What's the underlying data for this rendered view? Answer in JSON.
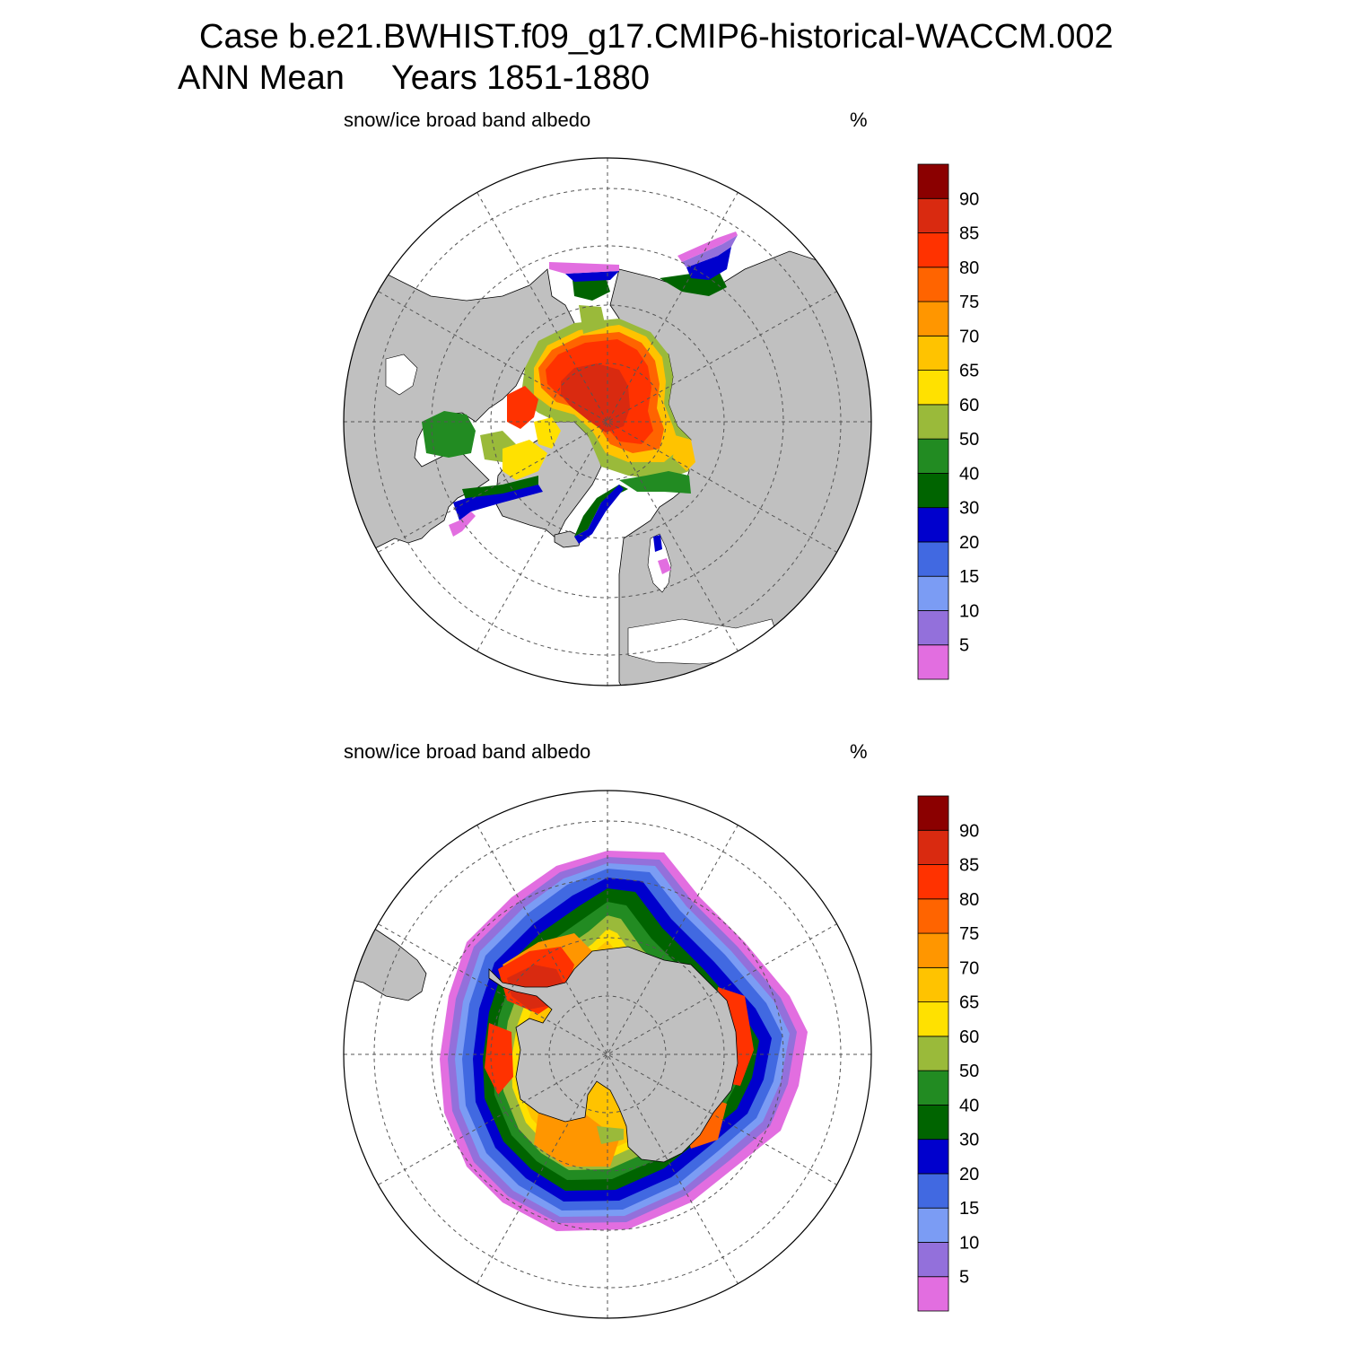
{
  "header": {
    "case_line": "Case b.e21.BWHIST.f09_g17.CMIP6-historical-WACCM.002",
    "period_line": "ANN Mean     Years 1851-1880"
  },
  "panels": [
    {
      "hemisphere": "north",
      "title": "snow/ice broad band albedo",
      "units": "%"
    },
    {
      "hemisphere": "south",
      "title": "snow/ice broad band albedo",
      "units": "%"
    }
  ],
  "colorbar": {
    "labels": [
      "5",
      "10",
      "15",
      "20",
      "30",
      "40",
      "50",
      "60",
      "65",
      "70",
      "75",
      "80",
      "85",
      "90"
    ],
    "colors_bottom_to_top": [
      "#e26ee0",
      "#9370db",
      "#7b9cf4",
      "#4169e1",
      "#0000cd",
      "#006400",
      "#228b22",
      "#9aba3a",
      "#ffe100",
      "#ffc300",
      "#ff9600",
      "#ff6400",
      "#ff3200",
      "#d92a10",
      "#8b0000"
    ]
  },
  "colors": {
    "land": "#c0c0c0",
    "ocean": "#ffffff",
    "grid": "#555555"
  }
}
